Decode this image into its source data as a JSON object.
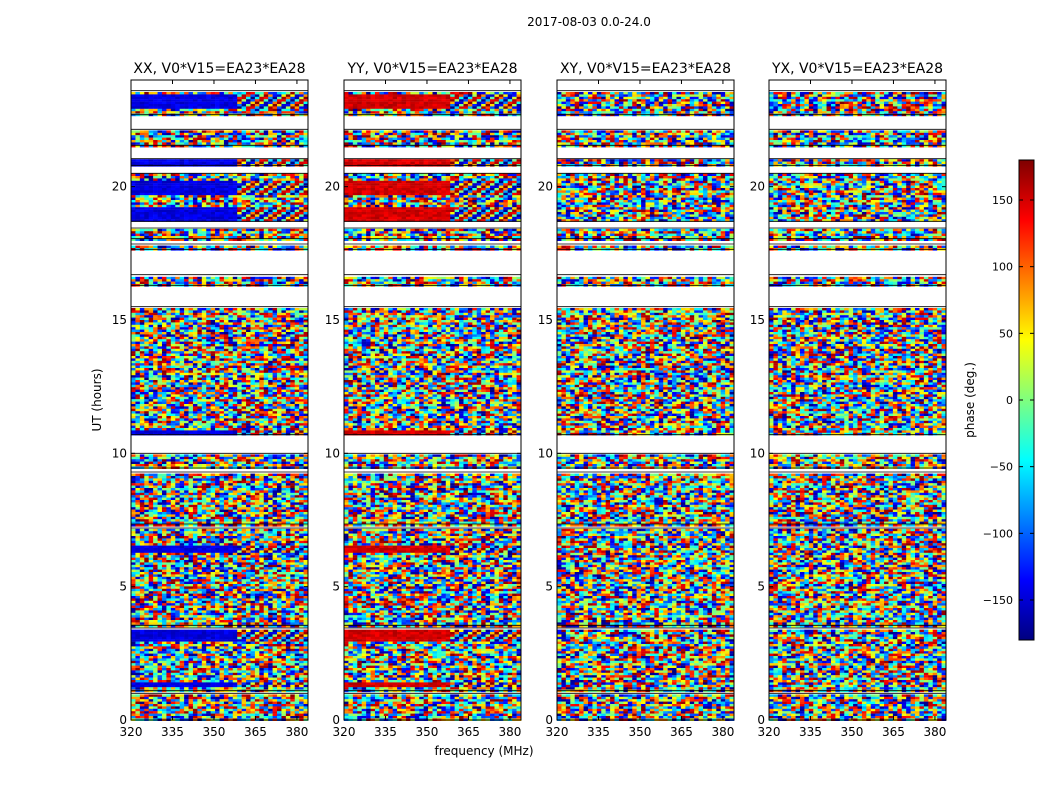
{
  "figure_title": "2017-08-03 0.0-24.0",
  "chart_data": {
    "type": "heatmap",
    "title": "2017-08-03 0.0-24.0",
    "xlabel": "frequency (MHz)",
    "ylabel": "UT (hours)",
    "xlim": [
      320,
      384
    ],
    "ylim": [
      0,
      24
    ],
    "xticks": [
      320,
      335,
      350,
      365,
      380
    ],
    "yticks": [
      0,
      5,
      10,
      15,
      20
    ],
    "colorbar": {
      "label": "phase (deg.)",
      "colormap": "jet",
      "range": [
        -180,
        180
      ],
      "ticks": [
        150,
        100,
        50,
        0,
        -50,
        -100,
        -150
      ],
      "tick_labels": [
        "150",
        "100",
        "50",
        "0",
        "−50",
        "−100",
        "−150"
      ],
      "colors": [
        "#00007f",
        "#0000ff",
        "#007fff",
        "#00ffff",
        "#7fff7f",
        "#ffff00",
        "#ff7f00",
        "#ff0000",
        "#7f0000"
      ]
    },
    "panels": [
      {
        "title": "XX, V0*V15=EA23*EA28",
        "coherent_phase_deg": -145
      },
      {
        "title": "YY, V0*V15=EA23*EA28",
        "coherent_phase_deg": 150
      },
      {
        "title": "XY, V0*V15=EA23*EA28",
        "coherent_phase_deg": null
      },
      {
        "title": "YX, V0*V15=EA23*EA28",
        "coherent_phase_deg": null
      }
    ],
    "data_gaps_hours": [
      [
        23.6,
        24.0
      ],
      [
        22.15,
        22.7
      ],
      [
        21.05,
        21.55
      ],
      [
        20.5,
        20.8
      ],
      [
        18.45,
        18.7
      ],
      [
        17.85,
        18.05
      ],
      [
        16.7,
        17.65
      ],
      [
        15.5,
        16.3
      ],
      [
        10.0,
        10.7
      ],
      [
        9.3,
        9.45
      ],
      [
        7.2,
        7.35
      ],
      [
        3.45,
        3.55
      ],
      [
        1.0,
        1.1
      ]
    ],
    "coherent_bands_hours": [
      [
        23.0,
        23.5
      ],
      [
        20.8,
        21.05
      ],
      [
        19.7,
        20.3
      ],
      [
        18.75,
        19.3
      ],
      [
        10.75,
        10.95
      ],
      [
        6.3,
        6.6
      ],
      [
        3.0,
        3.4
      ],
      [
        1.3,
        1.45
      ]
    ]
  }
}
